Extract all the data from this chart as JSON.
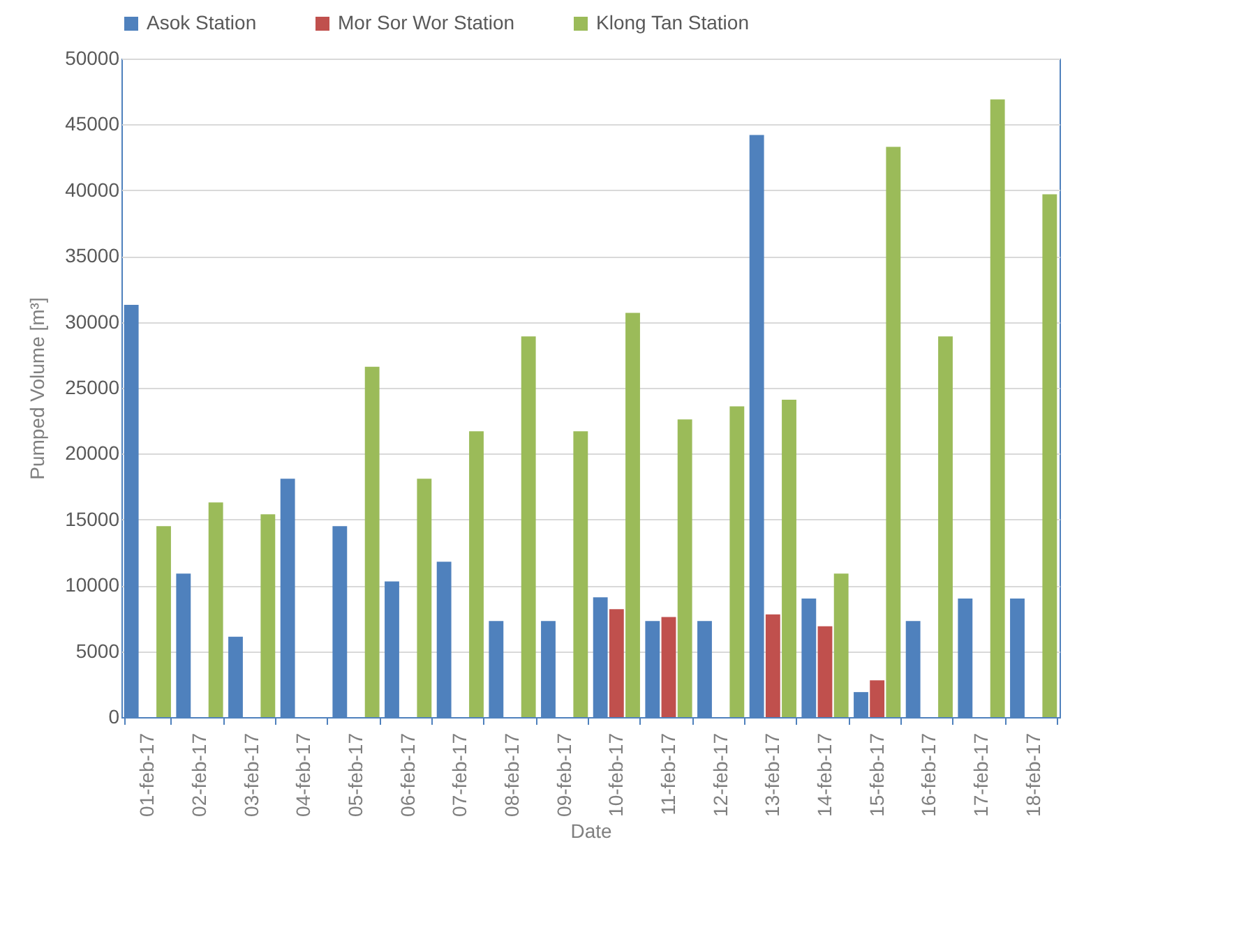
{
  "chart_data": {
    "type": "bar",
    "xlabel": "Date",
    "ylabel": "Pumped Volume [m³]",
    "categories": [
      "01-feb-17",
      "02-feb-17",
      "03-feb-17",
      "04-feb-17",
      "05-feb-17",
      "06-feb-17",
      "07-feb-17",
      "08-feb-17",
      "09-feb-17",
      "10-feb-17",
      "11-feb-17",
      "12-feb-17",
      "13-feb-17",
      "14-feb-17",
      "15-feb-17",
      "16-feb-17",
      "17-feb-17",
      "18-feb-17"
    ],
    "series": [
      {
        "name": "Asok Station",
        "color": "#4f81bd",
        "values": [
          31300,
          10900,
          6100,
          18100,
          14500,
          10300,
          11800,
          7300,
          7300,
          9100,
          7300,
          7300,
          44200,
          9000,
          1900,
          7300,
          9000,
          9000
        ]
      },
      {
        "name": "Mor Sor Wor Station",
        "color": "#c0504d",
        "values": [
          null,
          null,
          null,
          null,
          null,
          null,
          null,
          null,
          null,
          8200,
          7600,
          null,
          7800,
          6900,
          2800,
          null,
          null,
          null
        ]
      },
      {
        "name": "Klong Tan Station",
        "color": "#9bbb59",
        "values": [
          14500,
          16300,
          15400,
          null,
          26600,
          18100,
          21700,
          28900,
          21700,
          30700,
          22600,
          23600,
          24100,
          10900,
          43300,
          28900,
          46900,
          39700
        ]
      }
    ],
    "ylim": [
      0,
      50000
    ],
    "yticks": [
      0,
      5000,
      10000,
      15000,
      20000,
      25000,
      30000,
      35000,
      40000,
      45000,
      50000
    ],
    "grid": "y",
    "legend": "top"
  }
}
